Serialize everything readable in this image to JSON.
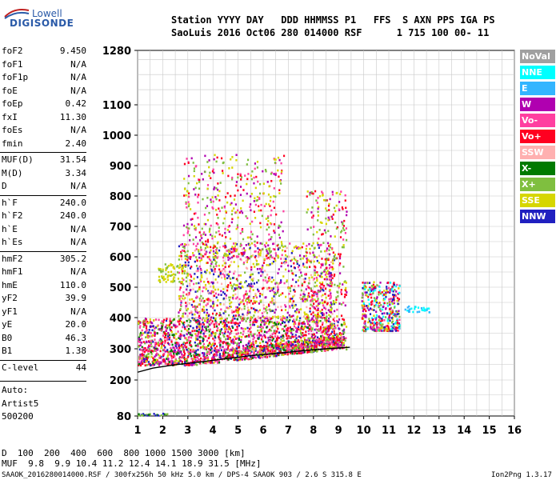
{
  "logo": {
    "line1": "Lowell",
    "line2": "DIGISONDE"
  },
  "header": {
    "row1": "Station YYYY DAY   DDD HHMMSS P1   FFS  S AXN PPS IGA PS",
    "row2": "SaoLuis 2016 Oct06 280 014000 RSF      1 715 100 00- 11"
  },
  "parameters": {
    "group1": [
      {
        "label": "foF2",
        "value": "9.450"
      },
      {
        "label": "foF1",
        "value": "N/A"
      },
      {
        "label": "foF1p",
        "value": "N/A"
      },
      {
        "label": "foE",
        "value": "N/A"
      },
      {
        "label": "foEp",
        "value": "0.42"
      },
      {
        "label": "fxI",
        "value": "11.30"
      },
      {
        "label": "foEs",
        "value": "N/A"
      },
      {
        "label": "fmin",
        "value": "2.40"
      }
    ],
    "group2": [
      {
        "label": "MUF(D)",
        "value": "31.54"
      },
      {
        "label": "M(D)",
        "value": "3.34"
      },
      {
        "label": "D",
        "value": "N/A"
      }
    ],
    "group3": [
      {
        "label": "h`F",
        "value": "240.0"
      },
      {
        "label": "h`F2",
        "value": "240.0"
      },
      {
        "label": "h`E",
        "value": "N/A"
      },
      {
        "label": "h`Es",
        "value": "N/A"
      }
    ],
    "group4": [
      {
        "label": "hmF2",
        "value": "305.2"
      },
      {
        "label": "hmF1",
        "value": "N/A"
      },
      {
        "label": "hmE",
        "value": "110.0"
      },
      {
        "label": "yF2",
        "value": "39.9"
      },
      {
        "label": "yF1",
        "value": "N/A"
      },
      {
        "label": "yE",
        "value": "20.0"
      },
      {
        "label": "B0",
        "value": "46.3"
      },
      {
        "label": "B1",
        "value": "1.38"
      }
    ],
    "group5": [
      {
        "label": "C-level",
        "value": "44"
      }
    ]
  },
  "autoscale": {
    "line1": "Auto:",
    "line2": "Artist5",
    "line3": "500200"
  },
  "legend": [
    {
      "label": "NoVal",
      "color": "#a0a0a0"
    },
    {
      "label": "NNE",
      "color": "#00ffff"
    },
    {
      "label": "E",
      "color": "#33b5ff"
    },
    {
      "label": "W",
      "color": "#b000b0"
    },
    {
      "label": "Vo-",
      "color": "#ff3fa0"
    },
    {
      "label": "Vo+",
      "color": "#ff0020"
    },
    {
      "label": "SSW",
      "color": "#ffb0b0"
    },
    {
      "label": "X-",
      "color": "#007a00"
    },
    {
      "label": "X+",
      "color": "#7fbf3f"
    },
    {
      "label": "SSE",
      "color": "#d6d600"
    },
    {
      "label": "NNW",
      "color": "#2020c0"
    }
  ],
  "footer": {
    "d_label": "D",
    "d_values": "  100  200  400  600  800 1000 1500 3000 [km]",
    "muf_label": "MUF",
    "muf_values": "  9.8  9.9 10.4 11.2 12.4 14.1 18.9 31.5 [MHz]",
    "file_info": "SAAOK_2016280014000.RSF / 300fx256h 50 kHz 5.0 km / DPS-4 SAAOK 903 / 2.6 S 315.8 E",
    "version": "Ion2Png 1.3.17"
  },
  "chart_data": {
    "type": "scatter",
    "title": "",
    "xlabel": "",
    "ylabel": "",
    "x_ticks": [
      "1",
      "2",
      "3",
      "4",
      "5",
      "6",
      "7",
      "8",
      "9",
      "10",
      "11",
      "12",
      "13",
      "14",
      "15",
      "16"
    ],
    "y_ticks": [
      "80",
      "200",
      "300",
      "400",
      "500",
      "600",
      "700",
      "800",
      "900",
      "1000",
      "1100",
      "1280"
    ],
    "xlim": [
      1,
      16
    ],
    "ylim": [
      80,
      1280
    ],
    "grid": true,
    "clusters": [
      {
        "x": [
          1.0,
          9.2
        ],
        "y": [
          250,
          400
        ],
        "n": 2200,
        "colors": [
          "#ff0020",
          "#ff3fa0",
          "#b000b0",
          "#ff3fa0",
          "#ff0020",
          "#d6d600",
          "#007a00",
          "#7fbf3f",
          "#2020c0"
        ]
      },
      {
        "x": [
          2.6,
          8.8
        ],
        "y": [
          400,
          650
        ],
        "n": 1100,
        "colors": [
          "#ff0020",
          "#ff3fa0",
          "#b000b0",
          "#d6d600",
          "#d6d600",
          "#7fbf3f",
          "#2020c0",
          "#ffb0b0"
        ]
      },
      {
        "x": [
          2.8,
          6.8
        ],
        "y": [
          600,
          940
        ],
        "n": 450,
        "colors": [
          "#d6d600",
          "#ff3fa0",
          "#b000b0",
          "#7fbf3f",
          "#ff0020"
        ]
      },
      {
        "x": [
          7.7,
          9.3
        ],
        "y": [
          300,
          820
        ],
        "n": 350,
        "colors": [
          "#d6d600",
          "#ff0020",
          "#ff3fa0",
          "#7fbf3f",
          "#b000b0"
        ]
      },
      {
        "x": [
          9.9,
          11.4
        ],
        "y": [
          360,
          520
        ],
        "n": 420,
        "colors": [
          "#d6d600",
          "#ff0020",
          "#ff3fa0",
          "#b000b0",
          "#7fbf3f",
          "#00ffff",
          "#2020c0"
        ]
      },
      {
        "x": [
          11.6,
          12.6
        ],
        "y": [
          420,
          440
        ],
        "n": 28,
        "colors": [
          "#00ffff",
          "#33b5ff"
        ]
      },
      {
        "x": [
          1.8,
          3.0
        ],
        "y": [
          520,
          580
        ],
        "n": 70,
        "colors": [
          "#d6d600",
          "#7fbf3f"
        ]
      },
      {
        "x": [
          1.0,
          2.2
        ],
        "y": [
          85,
          92
        ],
        "n": 24,
        "colors": [
          "#007a00",
          "#2020c0",
          "#7fbf3f"
        ]
      }
    ],
    "trace": {
      "name": "profile",
      "x": [
        1.0,
        1.6,
        2.4,
        3.5,
        4.5,
        5.5,
        6.5,
        7.5,
        8.5,
        9.45
      ],
      "y": [
        225,
        238,
        248,
        258,
        268,
        278,
        285,
        293,
        300,
        305
      ]
    }
  }
}
